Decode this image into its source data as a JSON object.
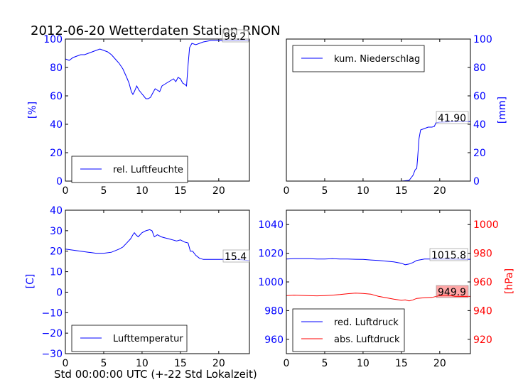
{
  "title": "2012-06-20 Wetterdaten Station RNON",
  "footer_label": "Std 00:00:00 UTC (+-22 Std Lokalzeit)",
  "colors": {
    "blue": "#0000ff",
    "red": "#ff0000",
    "axis": "#000000"
  },
  "chart_data": [
    {
      "type": "line",
      "panel": "top-left",
      "ylabel": "[%]",
      "xlim": [
        0,
        24
      ],
      "ylim": [
        0,
        100
      ],
      "xticks": [
        0,
        5,
        10,
        15,
        20
      ],
      "yticks": [
        0,
        20,
        40,
        60,
        80,
        100
      ],
      "legend_position": "bottom-center",
      "last_value_label": "99.2",
      "series": [
        {
          "name": "rel. Luftfeuchte",
          "color": "#0000ff",
          "x": [
            0,
            0.5,
            1,
            1.5,
            2,
            2.5,
            3,
            3.5,
            4,
            4.5,
            5,
            5.5,
            6,
            6.5,
            7,
            7.5,
            8,
            8.3,
            8.6,
            8.8,
            9,
            9.3,
            9.6,
            9.9,
            10.2,
            10.5,
            10.8,
            11.1,
            11.4,
            11.7,
            12,
            12.3,
            12.6,
            12.9,
            13.2,
            13.5,
            13.8,
            14.1,
            14.4,
            14.7,
            15,
            15.3,
            15.6,
            15.8,
            16,
            16.2,
            16.5,
            17,
            18,
            19,
            20,
            21,
            22,
            23,
            24
          ],
          "y": [
            86,
            85,
            87,
            88,
            89,
            89,
            90,
            91,
            92,
            93,
            92,
            91,
            89,
            86,
            83,
            79,
            73,
            69,
            63,
            61,
            63,
            67,
            64,
            62,
            60,
            58,
            58,
            59,
            62,
            65,
            64,
            63,
            67,
            68,
            69,
            70,
            71,
            72,
            70,
            73,
            72,
            69,
            68,
            67,
            82,
            94,
            97,
            96,
            98,
            99,
            99,
            99,
            99,
            99,
            99.2
          ]
        }
      ]
    },
    {
      "type": "line",
      "panel": "top-right",
      "ylabel": "[mm]",
      "xlim": [
        0,
        24
      ],
      "ylim": [
        0,
        100
      ],
      "xticks": [
        0,
        5,
        10,
        15,
        20
      ],
      "yticks": [
        0,
        20,
        40,
        60,
        80,
        100
      ],
      "legend_position": "top-left",
      "last_value_label": "41.90",
      "series": [
        {
          "name": "kum. Niederschlag",
          "color": "#0000ff",
          "x": [
            0,
            15,
            16,
            16.5,
            16.8,
            17,
            17.1,
            17.3,
            17.5,
            18,
            18.5,
            19,
            19.3,
            19.5,
            20,
            22,
            24
          ],
          "y": [
            0,
            0,
            0.5,
            4,
            8,
            9,
            15,
            30,
            36,
            37,
            38,
            38,
            38.5,
            41,
            41.5,
            41.8,
            41.9
          ]
        }
      ]
    },
    {
      "type": "line",
      "panel": "bottom-left",
      "ylabel": "[C]",
      "xlim": [
        0,
        24
      ],
      "ylim": [
        -30,
        40
      ],
      "xticks": [
        0,
        5,
        10,
        15,
        20
      ],
      "yticks": [
        -30,
        -20,
        -10,
        0,
        10,
        20,
        30,
        40
      ],
      "legend_position": "bottom-center",
      "last_value_label": "15.4",
      "series": [
        {
          "name": "Lufttemperatur",
          "color": "#0000ff",
          "x": [
            0,
            1,
            2,
            3,
            4,
            5,
            6,
            7,
            7.5,
            8,
            8.5,
            8.8,
            9,
            9.2,
            9.5,
            10,
            10.5,
            11,
            11.3,
            11.6,
            12,
            12.5,
            13,
            13.5,
            14,
            14.5,
            15,
            15.5,
            16,
            16.3,
            16.6,
            17,
            17.5,
            18,
            19,
            20,
            21,
            22,
            23,
            24
          ],
          "y": [
            21,
            20.5,
            20,
            19.5,
            19,
            19,
            19.5,
            21,
            22,
            24,
            26,
            28,
            29,
            28,
            27,
            29,
            30,
            30.5,
            30,
            27,
            28,
            27,
            26.5,
            26,
            25.5,
            25,
            25.5,
            24.5,
            24,
            20,
            20,
            18,
            16.5,
            16,
            16,
            16,
            16,
            16,
            15.8,
            15.4
          ]
        }
      ]
    },
    {
      "type": "line",
      "panel": "bottom-right",
      "xlim": [
        0,
        24
      ],
      "ylim_left": [
        950,
        1050
      ],
      "ylim_right": [
        910,
        1010
      ],
      "ylabel_right": "[hPa]",
      "xticks": [
        0,
        5,
        10,
        15,
        20
      ],
      "yticks_left": [
        960,
        980,
        1000,
        1020,
        1040
      ],
      "yticks_right": [
        920,
        940,
        960,
        980,
        1000
      ],
      "legend_position": "bottom-left",
      "last_value_labels": [
        "1015.8",
        "949.9"
      ],
      "series": [
        {
          "name": "red. Luftdruck",
          "color": "#0000ff",
          "axis": "left",
          "x": [
            0,
            1,
            2,
            3,
            4,
            5,
            6,
            7,
            8,
            9,
            10,
            11,
            12,
            13,
            14,
            14.5,
            15,
            15.5,
            16,
            16.5,
            17,
            18,
            19,
            20,
            21,
            22,
            23,
            24
          ],
          "y": [
            1016,
            1016.2,
            1016.2,
            1016.2,
            1016,
            1016,
            1016.2,
            1016,
            1016,
            1015.8,
            1015.7,
            1015.3,
            1015,
            1014.5,
            1014,
            1013.5,
            1013,
            1012,
            1012.5,
            1013.5,
            1015,
            1016,
            1016,
            1016,
            1016,
            1015.9,
            1015.8,
            1015.8
          ]
        },
        {
          "name": "abs. Luftdruck",
          "color": "#ff0000",
          "axis": "right",
          "x": [
            0,
            1,
            2,
            3,
            4,
            5,
            6,
            7,
            8,
            9,
            10,
            11,
            12,
            13,
            14,
            15,
            15.5,
            16,
            16.5,
            17,
            18,
            19,
            20,
            21,
            22,
            23,
            24
          ],
          "y": [
            950.5,
            950.8,
            950.6,
            950.4,
            950.3,
            950.5,
            950.8,
            951.2,
            951.8,
            952.2,
            952,
            951.5,
            950,
            949,
            948,
            947.2,
            947.5,
            946.8,
            947.5,
            948.5,
            949,
            949.2,
            950.5,
            950.8,
            950,
            949.9,
            949.9
          ]
        }
      ]
    }
  ]
}
